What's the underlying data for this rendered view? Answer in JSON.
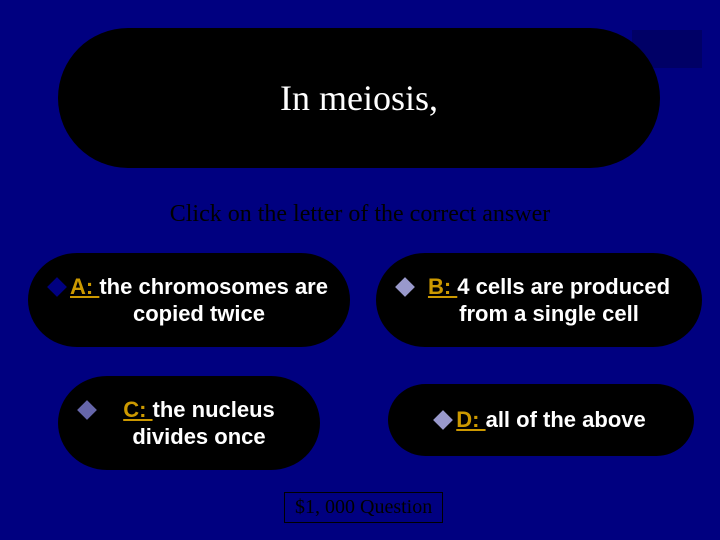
{
  "colors": {
    "page_bg": "#000080",
    "banner_bg": "#000000",
    "banner_text": "#ffffff",
    "instruction_text": "#000000",
    "answer_bg": "#000000",
    "answer_text": "#ffffff",
    "answer_letter": "#cc9900",
    "bullet_a": "#000080",
    "bullet_b": "#9999cc",
    "bullet_c": "#6666aa",
    "bullet_d": "#9999cc",
    "corner_block": "#000066",
    "footer_border": "#000000",
    "footer_text": "#000000"
  },
  "typography": {
    "question_fontsize_pt": 27,
    "instruction_fontsize_pt": 18,
    "answer_fontsize_pt": 17,
    "footer_fontsize_pt": 15,
    "question_font": "Times New Roman",
    "answer_font": "Arial",
    "answer_weight": "bold"
  },
  "question": "In meiosis,",
  "instruction": "Click on the letter of the correct answer",
  "answers": {
    "a": {
      "letter": "A: ",
      "text": "the chromosomes are copied twice"
    },
    "b": {
      "letter": "B: ",
      "text": "4 cells are produced from a single cell"
    },
    "c": {
      "letter": "C: ",
      "text": "the nucleus divides once"
    },
    "d": {
      "letter": "D: ",
      "text": "all of the above"
    }
  },
  "footer": "$1, 000 Question"
}
